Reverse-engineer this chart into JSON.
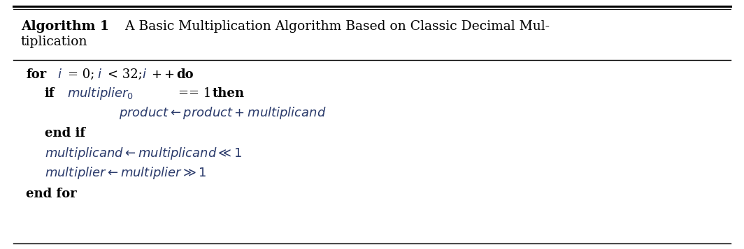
{
  "bg_color": "#ffffff",
  "border_color": "#000000",
  "text_color": "#000000",
  "italic_color": "#2a3a6b",
  "fig_width": 10.64,
  "fig_height": 3.57,
  "header_fontsize": 13.5,
  "code_fontsize": 13.0,
  "title_bold": "Algorithm 1",
  "title_rest_line1": " A Basic Multiplication Algorithm Based on Classic Decimal Mul-",
  "title_rest_line2": "tiplication"
}
